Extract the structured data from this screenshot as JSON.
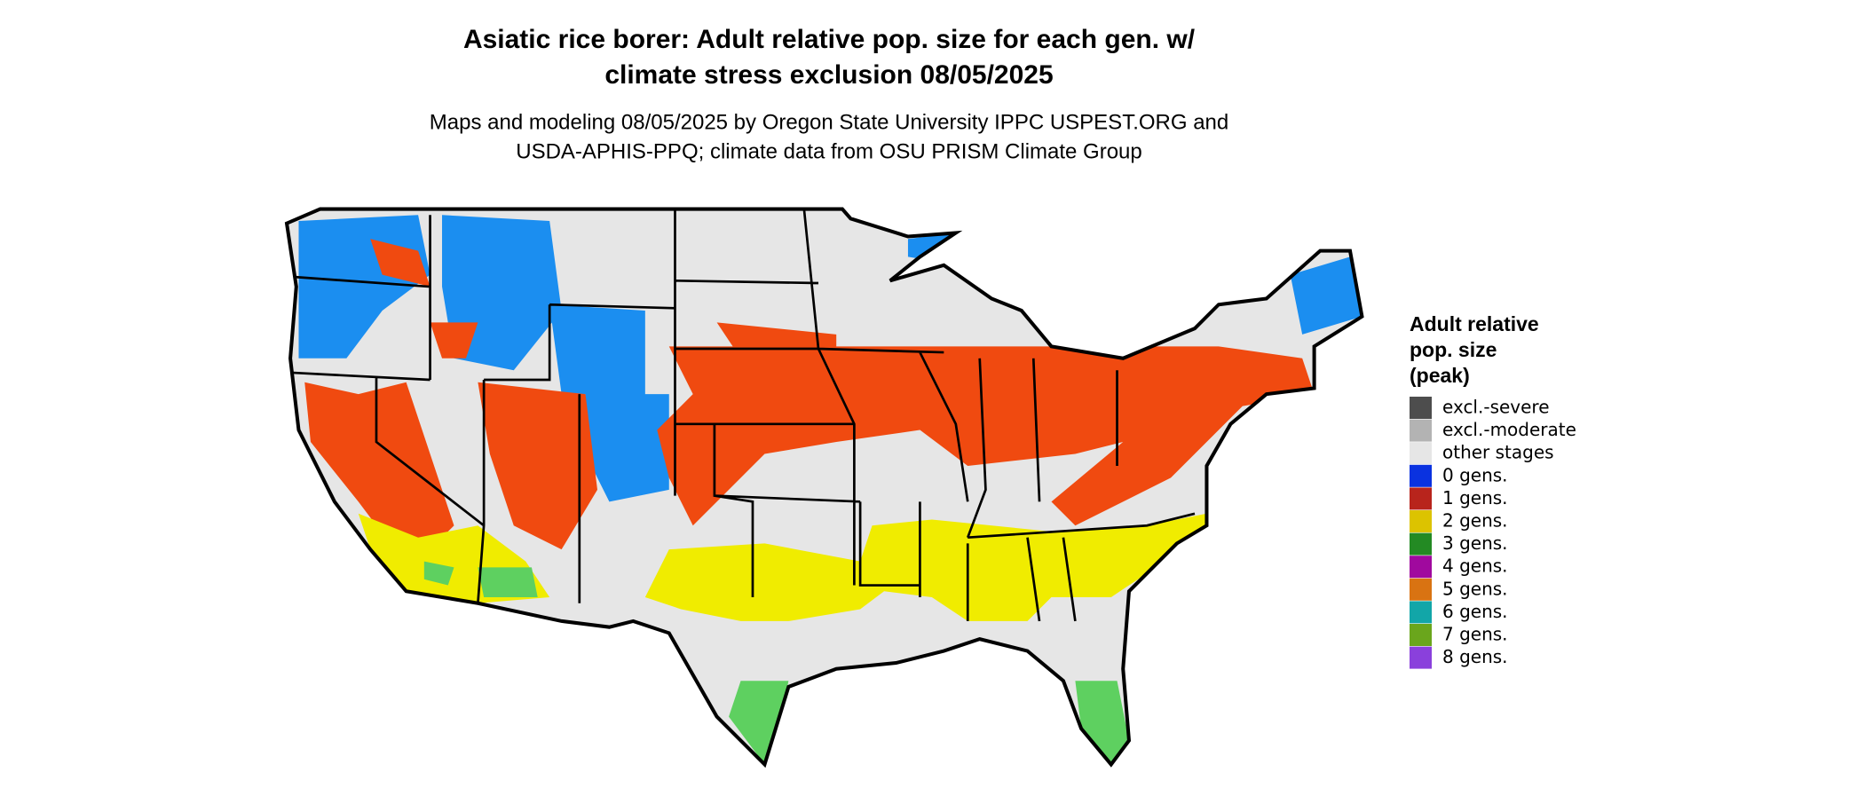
{
  "header": {
    "title": [
      "Asiatic rice borer: Adult relative pop. size for each gen. w/",
      "climate stress exclusion 08/05/2025"
    ],
    "subtitle": [
      "Maps and modeling 08/05/2025 by Oregon State University IPPC USPEST.ORG and",
      "USDA-APHIS-PPQ; climate data from OSU PRISM Climate Group"
    ]
  },
  "legend": {
    "title": [
      "Adult relative",
      "pop. size",
      "(peak)"
    ],
    "items": [
      {
        "label": "excl.-severe",
        "color": "#4d4d4d"
      },
      {
        "label": "excl.-moderate",
        "color": "#b3b3b3"
      },
      {
        "label": "other stages",
        "color": "#e6e6e6"
      },
      {
        "label": "0 gens.",
        "color": "#0a32e0"
      },
      {
        "label": "1 gens.",
        "color": "#b8241c"
      },
      {
        "label": "2 gens.",
        "color": "#dcc300"
      },
      {
        "label": "3 gens.",
        "color": "#238a23"
      },
      {
        "label": "4 gens.",
        "color": "#a0099e"
      },
      {
        "label": "5 gens.",
        "color": "#d97312"
      },
      {
        "label": "6 gens.",
        "color": "#12a6a8"
      },
      {
        "label": "7 gens.",
        "color": "#6aa61c"
      },
      {
        "label": "8 gens.",
        "color": "#8a40dc"
      }
    ]
  }
}
